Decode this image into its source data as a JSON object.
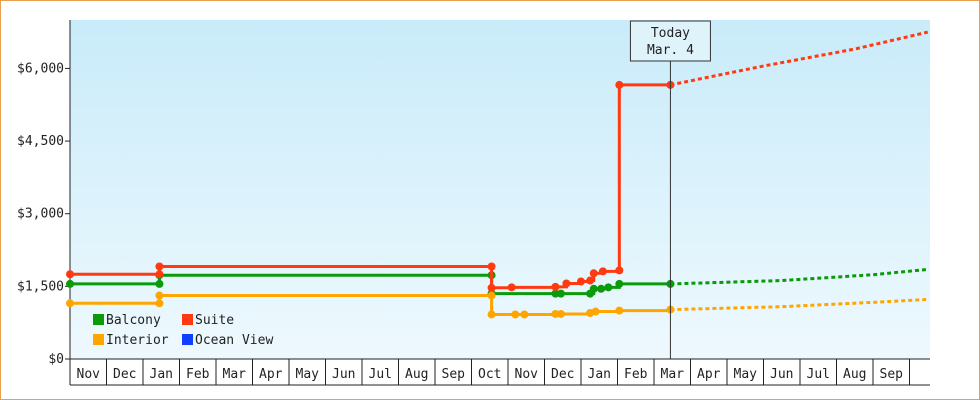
{
  "chart_data": {
    "type": "line",
    "title": "",
    "xlabel": "",
    "ylabel": "",
    "ylim": [
      0,
      7000
    ],
    "y_ticks": [
      0,
      1500,
      3000,
      4500,
      6000
    ],
    "y_tick_labels": [
      "$0",
      "$1,500",
      "$3,000",
      "$4,500",
      "$6,000"
    ],
    "x_months": [
      "Nov",
      "Dec",
      "Jan",
      "Feb",
      "Mar",
      "Apr",
      "May",
      "Jun",
      "Jul",
      "Aug",
      "Sep",
      "Oct",
      "Nov",
      "Dec",
      "Jan",
      "Feb",
      "Mar",
      "Apr",
      "May",
      "Jun",
      "Jul",
      "Aug",
      "Sep"
    ],
    "x_range_months": [
      0,
      23.5
    ],
    "grid": false,
    "legend_position": "bottom-left",
    "today_marker": {
      "x_month": 16.45,
      "line1": "Today",
      "line2": "Mar. 4"
    },
    "series": [
      {
        "name": "Balcony",
        "color": "#0a9a0a",
        "points": [
          [
            0.0,
            1550
          ],
          [
            2.45,
            1550
          ],
          [
            2.45,
            1730
          ],
          [
            11.55,
            1730
          ],
          [
            11.55,
            1350
          ],
          [
            13.3,
            1350
          ],
          [
            13.45,
            1350
          ],
          [
            14.25,
            1350
          ],
          [
            14.35,
            1450
          ],
          [
            14.55,
            1450
          ],
          [
            14.75,
            1480
          ],
          [
            15.05,
            1550
          ],
          [
            16.45,
            1550
          ]
        ],
        "projection": [
          [
            16.45,
            1550
          ],
          [
            19.5,
            1620
          ],
          [
            22.0,
            1740
          ],
          [
            23.5,
            1850
          ]
        ]
      },
      {
        "name": "Suite",
        "color": "#ff3a10",
        "points": [
          [
            0.0,
            1750
          ],
          [
            2.45,
            1750
          ],
          [
            2.45,
            1910
          ],
          [
            11.55,
            1910
          ],
          [
            11.55,
            1470
          ],
          [
            12.1,
            1480
          ],
          [
            13.3,
            1490
          ],
          [
            13.6,
            1560
          ],
          [
            14.0,
            1600
          ],
          [
            14.25,
            1620
          ],
          [
            14.35,
            1770
          ],
          [
            14.6,
            1810
          ],
          [
            15.05,
            1830
          ],
          [
            15.05,
            5660
          ],
          [
            16.45,
            5660
          ]
        ],
        "projection": [
          [
            16.45,
            5660
          ],
          [
            19.0,
            6050
          ],
          [
            21.5,
            6400
          ],
          [
            23.5,
            6750
          ]
        ]
      },
      {
        "name": "Interior",
        "color": "#ffa500",
        "points": [
          [
            0.0,
            1150
          ],
          [
            2.45,
            1150
          ],
          [
            2.45,
            1310
          ],
          [
            11.55,
            1310
          ],
          [
            11.55,
            920
          ],
          [
            12.2,
            920
          ],
          [
            12.45,
            920
          ],
          [
            13.3,
            930
          ],
          [
            13.45,
            930
          ],
          [
            14.25,
            950
          ],
          [
            14.4,
            980
          ],
          [
            15.05,
            1000
          ],
          [
            16.45,
            1020
          ]
        ],
        "projection": [
          [
            16.45,
            1020
          ],
          [
            19.5,
            1080
          ],
          [
            22.0,
            1170
          ],
          [
            23.5,
            1230
          ]
        ]
      },
      {
        "name": "Ocean View",
        "color": "#1040ff",
        "points": [],
        "projection": []
      }
    ]
  }
}
